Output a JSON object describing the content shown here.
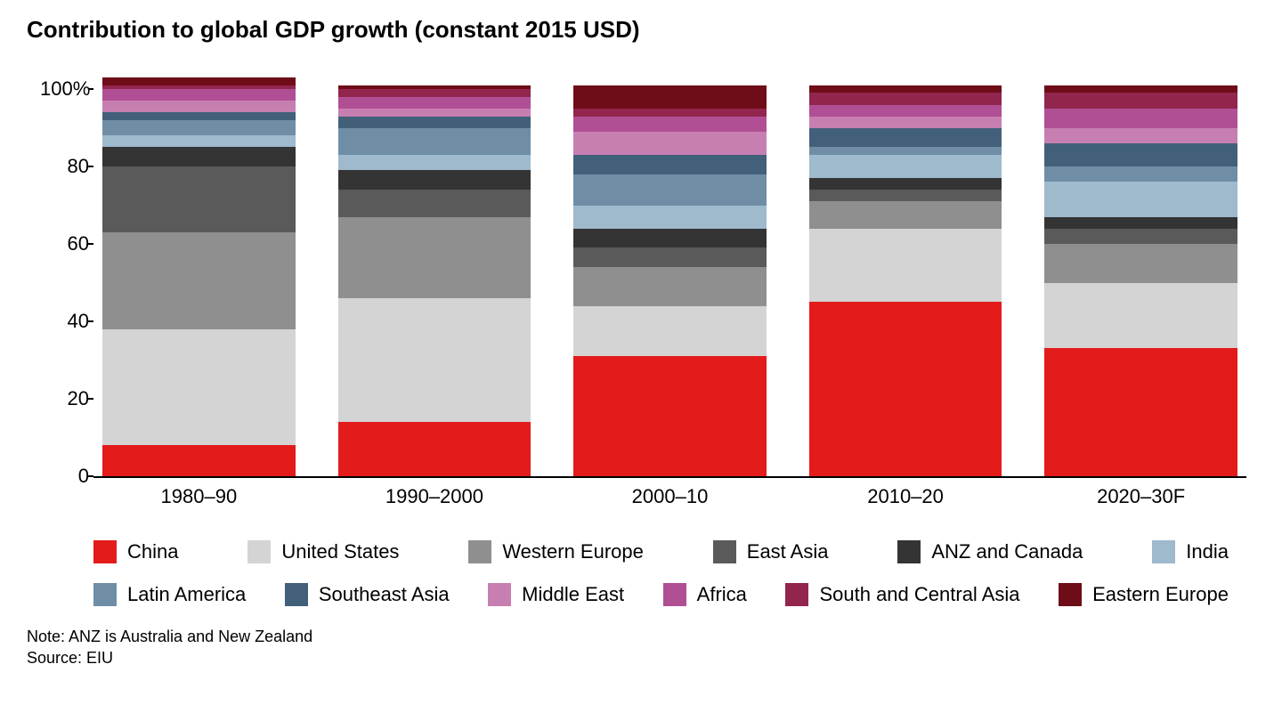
{
  "title": "Contribution to global GDP growth (constant 2015 USD)",
  "chart": {
    "type": "stacked-bar-100pct",
    "background_color": "#ffffff",
    "axis_color": "#000000",
    "label_fontsize": 22,
    "title_fontsize": 26,
    "y_axis": {
      "ticks": [
        0,
        20,
        40,
        60,
        80,
        100
      ],
      "top_label": "100%",
      "max": 103
    },
    "categories": [
      "1980–90",
      "1990–2000",
      "2000–10",
      "2010–20",
      "2020–30F"
    ],
    "series": [
      {
        "key": "china",
        "label": "China",
        "color": "#e31b1b"
      },
      {
        "key": "us",
        "label": "United States",
        "color": "#d4d4d4"
      },
      {
        "key": "weurope",
        "label": "Western Europe",
        "color": "#8f8f8f"
      },
      {
        "key": "eastasia",
        "label": "East Asia",
        "color": "#5a5a5a"
      },
      {
        "key": "anz_canada",
        "label": "ANZ and Canada",
        "color": "#343434"
      },
      {
        "key": "india",
        "label": "India",
        "color": "#9fb9cd"
      },
      {
        "key": "latam",
        "label": "Latin America",
        "color": "#6f8ea6"
      },
      {
        "key": "seasia",
        "label": "Southeast Asia",
        "color": "#42607a"
      },
      {
        "key": "mideast",
        "label": "Middle East",
        "color": "#c77fb1"
      },
      {
        "key": "africa",
        "label": "Africa",
        "color": "#b04f94"
      },
      {
        "key": "scasia",
        "label": "South and Central Asia",
        "color": "#92254e"
      },
      {
        "key": "eeurope",
        "label": "Eastern Europe",
        "color": "#6e0d17"
      }
    ],
    "data": {
      "1980–90": {
        "china": 8,
        "us": 30,
        "weurope": 25,
        "eastasia": 17,
        "anz_canada": 5,
        "india": 3,
        "latam": 4,
        "seasia": 2,
        "mideast": 3,
        "africa": 3,
        "scasia": 1,
        "eeurope": 2
      },
      "1990–2000": {
        "china": 14,
        "us": 32,
        "weurope": 21,
        "eastasia": 7,
        "anz_canada": 5,
        "india": 4,
        "latam": 7,
        "seasia": 3,
        "mideast": 2,
        "africa": 3,
        "scasia": 2,
        "eeurope": 1
      },
      "2000–10": {
        "china": 31,
        "us": 13,
        "weurope": 10,
        "eastasia": 5,
        "anz_canada": 5,
        "india": 6,
        "latam": 8,
        "seasia": 5,
        "mideast": 6,
        "africa": 4,
        "scasia": 2,
        "eeurope": 6
      },
      "2010–20": {
        "china": 45,
        "us": 19,
        "weurope": 7,
        "eastasia": 3,
        "anz_canada": 3,
        "india": 6,
        "latam": 2,
        "seasia": 5,
        "mideast": 3,
        "africa": 3,
        "scasia": 3,
        "eeurope": 2
      },
      "2020–30F": {
        "china": 33,
        "us": 17,
        "weurope": 10,
        "eastasia": 4,
        "anz_canada": 3,
        "india": 9,
        "latam": 4,
        "seasia": 6,
        "mideast": 4,
        "africa": 5,
        "scasia": 4,
        "eeurope": 2
      }
    }
  },
  "footnotes": {
    "note": "Note: ANZ is Australia and New Zealand",
    "source": "Source: EIU"
  }
}
